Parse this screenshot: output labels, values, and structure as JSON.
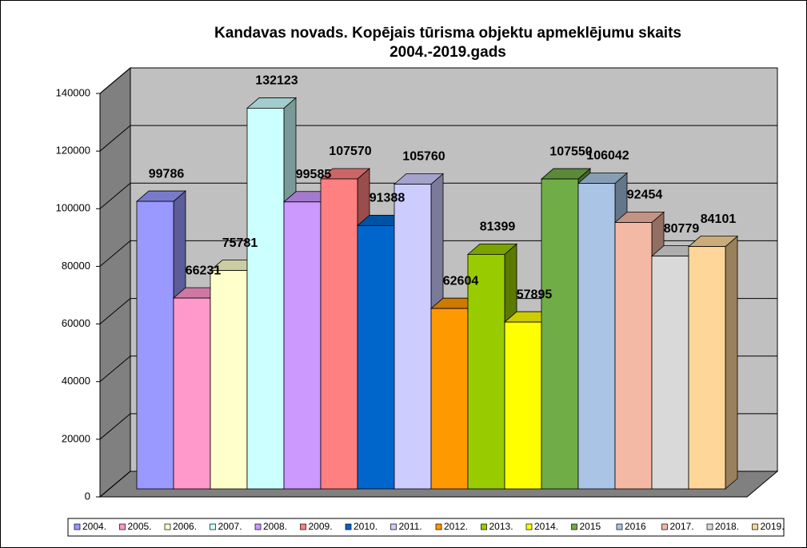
{
  "chart_data": {
    "type": "bar3d",
    "title": [
      "Kandavas novads. Kopējais tūrisma objektu apmeklējumu skaits",
      "2004.-2019.gads"
    ],
    "categories": [
      "2004.",
      "2005.",
      "2006.",
      "2007.",
      "2008.",
      "2009.",
      "2010.",
      "2011.",
      "2012.",
      "2013.",
      "2014.",
      "2015",
      "2016",
      "2017.",
      "2018.",
      "2019."
    ],
    "values": [
      99786,
      66231,
      75781,
      132123,
      99585,
      107570,
      91388,
      105760,
      62604,
      81399,
      57895,
      107550,
      106042,
      92454,
      80779,
      84101
    ],
    "colors": [
      "#9999ff",
      "#ff99cc",
      "#ffffcc",
      "#ccffff",
      "#cc99ff",
      "#ff8080",
      "#0066cc",
      "#ccccff",
      "#ff9900",
      "#99cc00",
      "#ffff00",
      "#70ad47",
      "#a9c4e4",
      "#f4b9a4",
      "#d9d9d9",
      "#ffd699"
    ],
    "ylim": [
      0,
      140000
    ],
    "yticks": [
      0,
      20000,
      40000,
      60000,
      80000,
      100000,
      120000,
      140000
    ],
    "grid": true,
    "legend": "bottom"
  }
}
